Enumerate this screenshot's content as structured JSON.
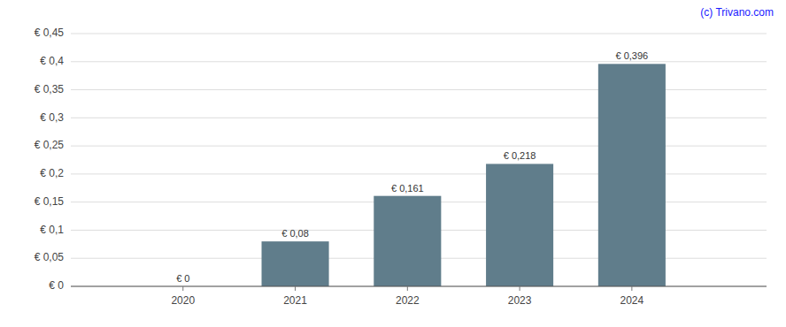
{
  "chart_data": {
    "type": "bar",
    "x": [
      2020,
      2021,
      2022,
      2023,
      2024
    ],
    "values": [
      0.0,
      0.08,
      0.161,
      0.218,
      0.396
    ],
    "data_labels": true,
    "value_labels": [
      "€ 0",
      "€ 0,08",
      "€ 0,161",
      "€ 0,218",
      "€ 0,396"
    ],
    "color": "#607d8b",
    "xlim": [
      2019.0,
      2025.2
    ],
    "xticks": [
      2020,
      2021,
      2022,
      2023,
      2024
    ],
    "ylim": [
      0,
      0.45
    ],
    "yticks": [
      {
        "value": 0,
        "label": "€ 0"
      },
      {
        "value": 0.05,
        "label": "€ 0,05"
      },
      {
        "value": 0.1,
        "label": "€ 0,1"
      },
      {
        "value": 0.15,
        "label": "€ 0,15"
      },
      {
        "value": 0.2,
        "label": "€ 0,2"
      },
      {
        "value": 0.25,
        "label": "€ 0,25"
      },
      {
        "value": 0.3,
        "label": "€ 0,3"
      },
      {
        "value": 0.35,
        "label": "€ 0,35"
      },
      {
        "value": 0.4,
        "label": "€ 0,4"
      },
      {
        "value": 0.45,
        "label": "€ 0,45"
      }
    ],
    "grid": true,
    "annotations": [
      {
        "text": "(c) Trivano.com",
        "color": "#1a1aff"
      }
    ]
  }
}
